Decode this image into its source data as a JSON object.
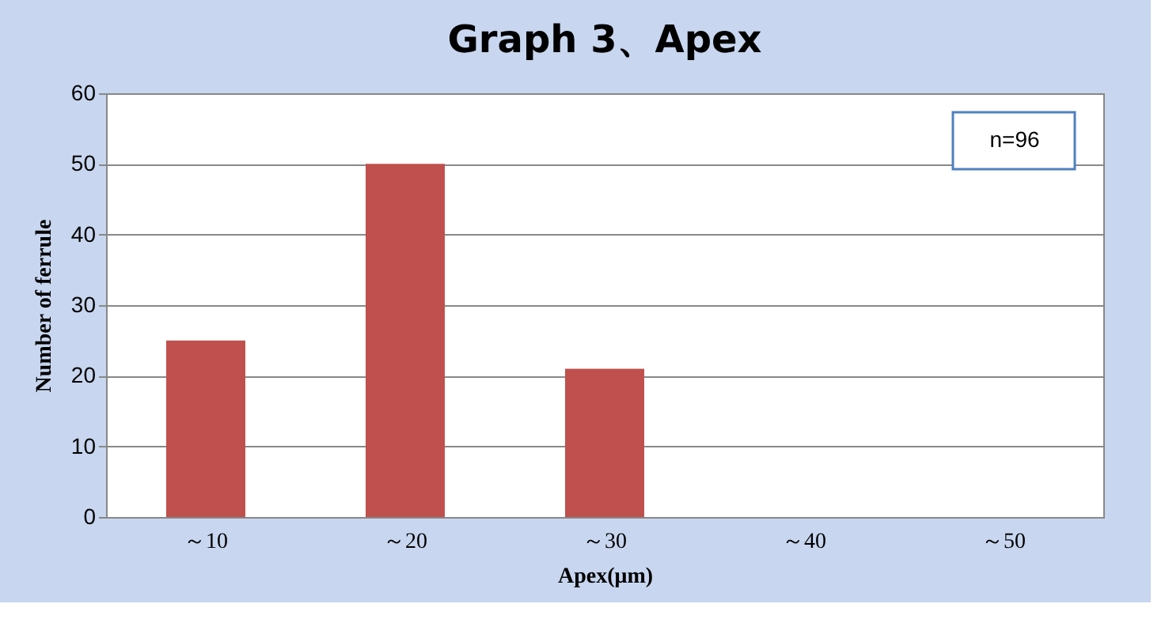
{
  "chart_data": {
    "type": "bar",
    "title": "Graph 3、Apex",
    "xlabel": "Apex(μm)",
    "ylabel": "Number of ferrule",
    "categories": [
      "～10",
      "～20",
      "～30",
      "～40",
      "～50"
    ],
    "values": [
      25,
      50,
      21,
      0,
      0
    ],
    "color": "#c0504d",
    "ylim": [
      0,
      60
    ],
    "yticks": [
      0,
      10,
      20,
      30,
      40,
      50,
      60
    ],
    "grid": "y",
    "annotations": [
      "n=96"
    ]
  }
}
